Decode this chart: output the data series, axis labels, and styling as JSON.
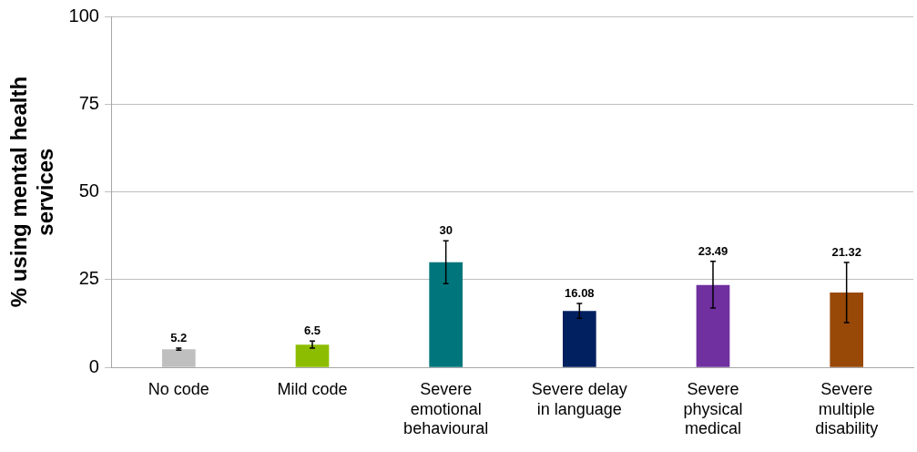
{
  "chart_data": {
    "type": "bar",
    "ylabel": "% using mental health services",
    "categories": [
      "No code",
      "Mild code",
      "Severe emotional behavioural",
      "Severe delay in language",
      "Severe physical medical",
      "Severe multiple disability"
    ],
    "values": [
      5.2,
      6.5,
      30,
      16.08,
      23.49,
      21.32
    ],
    "colors": [
      "#bfbfbf",
      "#8cbd00",
      "#00767c",
      "#002060",
      "#7030a0",
      "#984807"
    ],
    "errors": [
      [
        4.9,
        5.5
      ],
      [
        5.5,
        7.5
      ],
      [
        23.9,
        36.1
      ],
      [
        14.0,
        18.2
      ],
      [
        16.9,
        30.2
      ],
      [
        12.8,
        29.9
      ]
    ],
    "data_labels": true,
    "ylim": [
      0,
      100
    ],
    "yticks": [
      0,
      25,
      50,
      75,
      100
    ],
    "grid": "y",
    "legend": false
  }
}
